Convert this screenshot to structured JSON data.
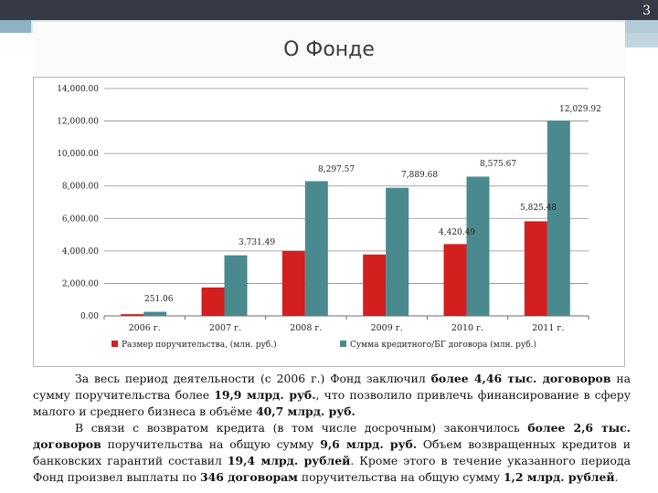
{
  "slide": {
    "number": "3",
    "title": "О Фонде"
  },
  "colors": {
    "series1": "#d41f1f",
    "series2": "#4a8a8f",
    "topbar": "#363a45",
    "accent": "#8fb2c3"
  },
  "chart_data": {
    "type": "bar",
    "categories": [
      "2006 г.",
      "2007 г.",
      "2008 г.",
      "2009 г.",
      "2010 г.",
      "2011 г."
    ],
    "y_ticks": [
      "0.00",
      "2,000.00",
      "4,000.00",
      "6,000.00",
      "8,000.00",
      "10,000.00",
      "12,000.00",
      "14,000.00"
    ],
    "ylim": [
      0,
      14000
    ],
    "grid": true,
    "legend_position": "bottom",
    "series": [
      {
        "name": "Размер поручительства, (млн. руб.)",
        "values": [
          106,
          1750,
          4000,
          3780,
          4420.49,
          5825.48
        ],
        "labels": [
          "",
          "",
          "",
          "",
          "4,420.49",
          "5,825.48"
        ]
      },
      {
        "name": "Сумма кредитного/БГ договора (млн. руб.)",
        "values": [
          251.06,
          3731.49,
          8297.57,
          7889.68,
          8575.67,
          12029.92
        ],
        "labels": [
          "251.06",
          "3.731.49",
          "8,297.57",
          "7,889.68",
          "8,575.67",
          "12,029.92"
        ]
      }
    ]
  },
  "body": {
    "p1": [
      {
        "text": "За весь период деятельности (с 2006 г.) Фонд заключил ",
        "bold": false
      },
      {
        "text": "более 4,46 тыс. договоров",
        "bold": true
      },
      {
        "text": " на сумму поручительства более ",
        "bold": false
      },
      {
        "text": "19,9 млрд. руб.",
        "bold": true
      },
      {
        "text": ", что позволило привлечь финансирование в сферу малого и среднего бизнеса в объёме ",
        "bold": false
      },
      {
        "text": "40,7 млрд. руб.",
        "bold": true
      }
    ],
    "p2": [
      {
        "text": "В связи с возвратом кредита (в том числе досрочным) закончилось ",
        "bold": false
      },
      {
        "text": "более 2,6 тыс. договоров",
        "bold": true
      },
      {
        "text": " поручительства на общую сумму ",
        "bold": false
      },
      {
        "text": "9,6 млрд. руб.",
        "bold": true
      },
      {
        "text": " Объем возвращенных кредитов и банковских гарантий составил ",
        "bold": false
      },
      {
        "text": "19,4 млрд. рублей",
        "bold": true
      },
      {
        "text": ". Кроме этого в течение указанного периода Фонд произвел выплаты по ",
        "bold": false
      },
      {
        "text": "346 договорам",
        "bold": true
      },
      {
        "text": " поручительства на общую сумму ",
        "bold": false
      },
      {
        "text": "1,2 млрд. рублей",
        "bold": true
      },
      {
        "text": ".",
        "bold": false
      }
    ]
  }
}
